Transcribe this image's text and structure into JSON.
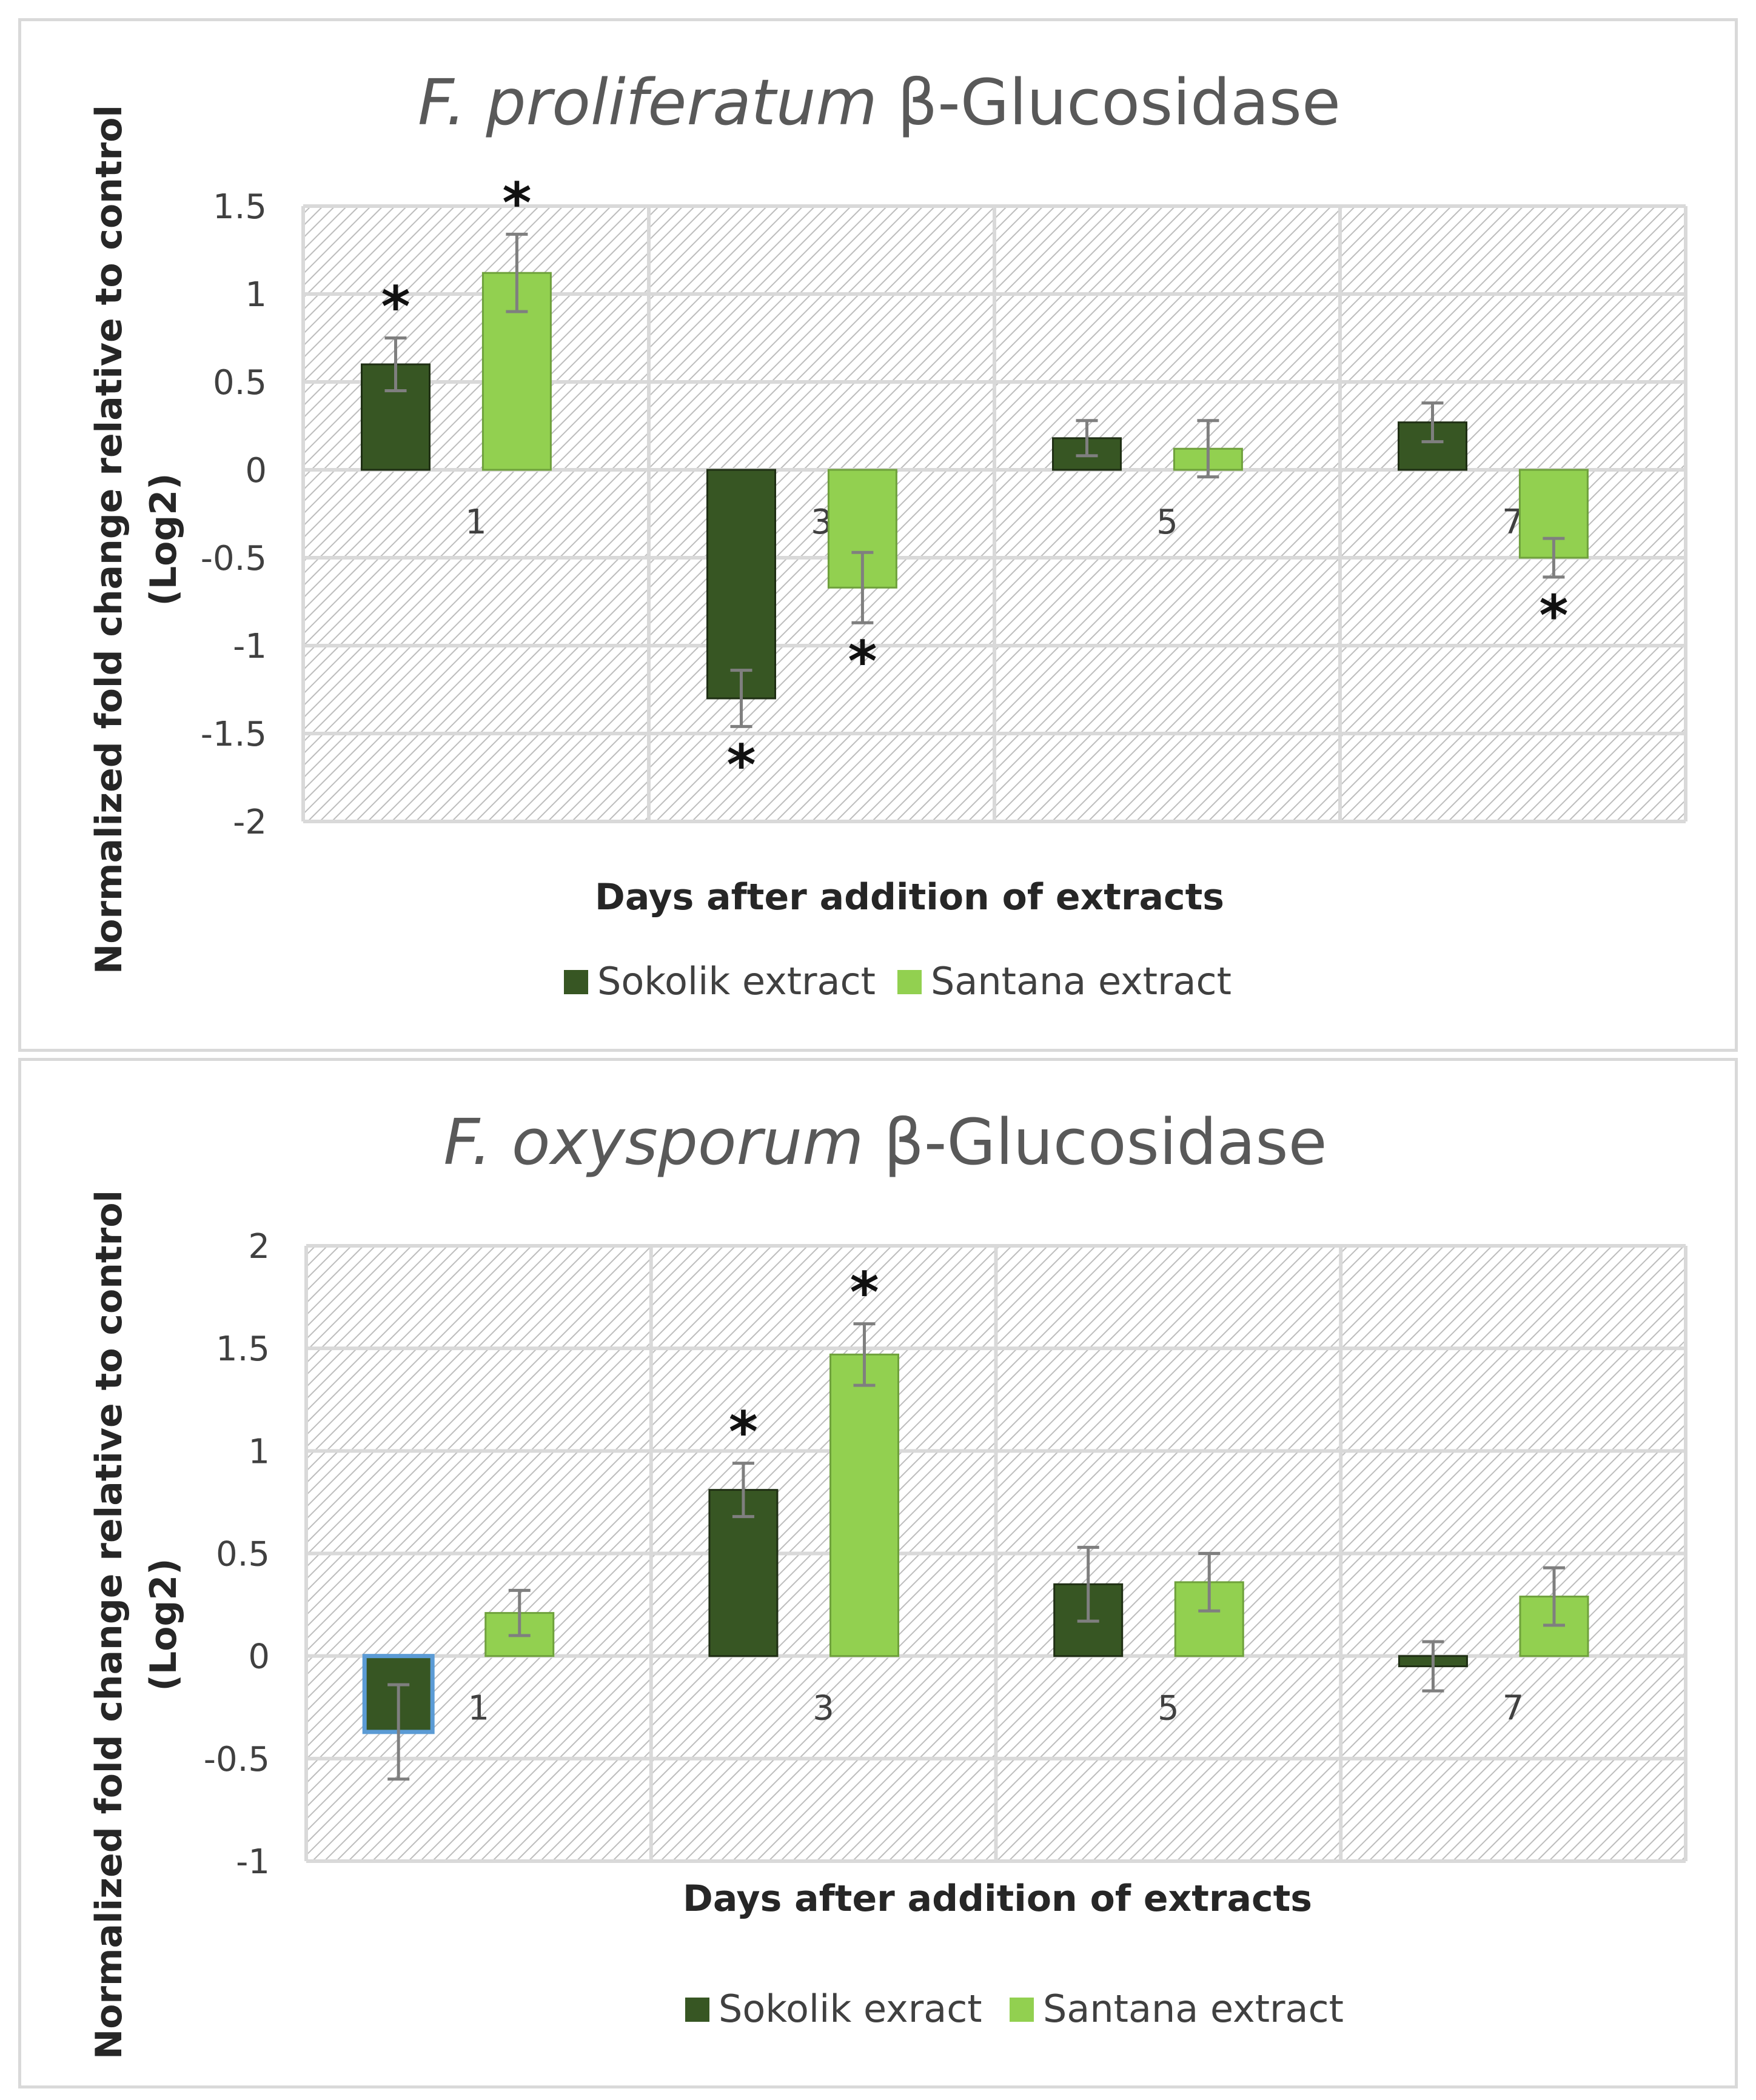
{
  "colors": {
    "sokolik": "#375623",
    "santana": "#92d050",
    "error_bar": "#7f7f7f",
    "grid": "#d9d9d9",
    "hatch": "#bdbdbd",
    "highlight_outline": "#5b9bd5"
  },
  "chart_data": [
    {
      "type": "bar",
      "title": "F. proliferatum β-Glucosidase",
      "title_italic": "F. proliferatum",
      "title_rest": "β-Glucosidase",
      "xlabel": "Days after addition of extracts",
      "ylabel_line1": "Normalized fold change  relative to control",
      "ylabel_line2": "(Log2)",
      "ylim": [
        -2,
        1.5
      ],
      "yticks": [
        1.5,
        1,
        0.5,
        0,
        -0.5,
        -1,
        -1.5,
        -2
      ],
      "ytick_labels": [
        "1.5",
        "1",
        "0.5",
        "0",
        "-0.5",
        "-1",
        "-1.5",
        "-2"
      ],
      "categories": [
        "1",
        "3",
        "5",
        "7"
      ],
      "legend_position": "bottom",
      "series": [
        {
          "name": "Sokolik extract",
          "values": [
            0.6,
            -1.3,
            0.18,
            0.27
          ],
          "errors": [
            0.15,
            0.16,
            0.1,
            0.11
          ],
          "significant": [
            true,
            true,
            false,
            false
          ]
        },
        {
          "name": "Santana extract",
          "values": [
            1.12,
            -0.67,
            0.12,
            -0.5
          ],
          "errors": [
            0.22,
            0.2,
            0.16,
            0.11
          ],
          "significant": [
            true,
            true,
            false,
            true
          ]
        }
      ],
      "annotation_symbol": "*"
    },
    {
      "type": "bar",
      "title": "F. oxysporum β-Glucosidase",
      "title_italic": "F. oxysporum",
      "title_rest": "β-Glucosidase",
      "xlabel": "Days after addition of extracts",
      "ylabel_line1": "Normalized fold change  relative to control",
      "ylabel_line2": "(Log2)",
      "ylim": [
        -1,
        2
      ],
      "yticks": [
        2,
        1.5,
        1,
        0.5,
        0,
        -0.5,
        -1
      ],
      "ytick_labels": [
        "2",
        "1.5",
        "1",
        "0.5",
        "0",
        "-0.5",
        "-1"
      ],
      "categories": [
        "1",
        "3",
        "5",
        "7"
      ],
      "legend_position": "bottom",
      "series": [
        {
          "name": "Sokolik exract",
          "values": [
            -0.37,
            0.81,
            0.35,
            -0.05
          ],
          "errors": [
            0.23,
            0.13,
            0.18,
            0.12
          ],
          "significant": [
            false,
            true,
            false,
            false
          ]
        },
        {
          "name": "Santana extract",
          "values": [
            0.21,
            1.47,
            0.36,
            0.29
          ],
          "errors": [
            0.11,
            0.15,
            0.14,
            0.14
          ],
          "significant": [
            false,
            true,
            false,
            false
          ]
        }
      ],
      "annotation_symbol": "*"
    }
  ]
}
